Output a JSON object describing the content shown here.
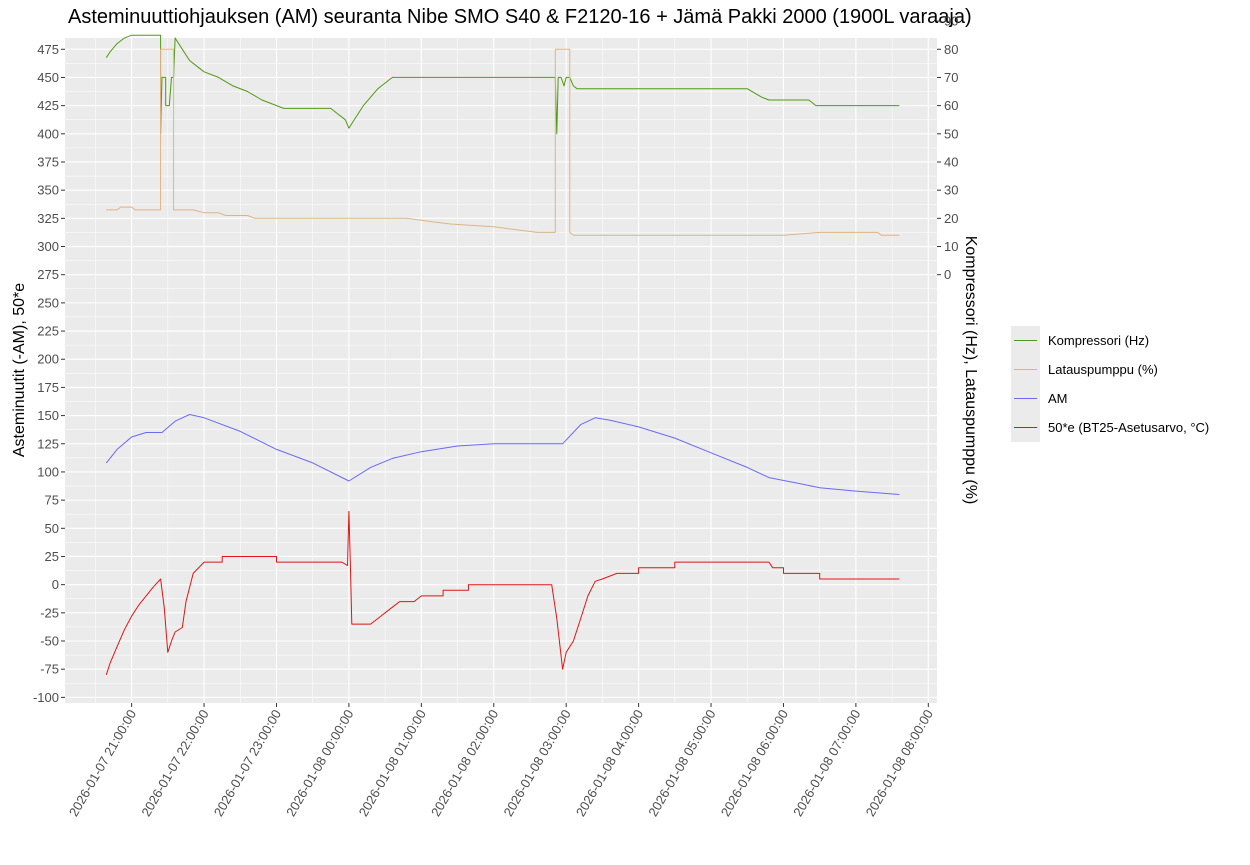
{
  "chart_data": {
    "type": "line",
    "title": "Asteminuuttiohjauksen (AM) seuranta Nibe SMO S40 & F2120-16 + Jämä Pakki 2000 (1900L varaaja)",
    "ylabel_left": "Asteminuutit (-AM), 50*e",
    "ylabel_right": "Kompressori (Hz), Latauspumppu (%)",
    "xlabel": "",
    "ylim_left": [
      -105,
      485
    ],
    "y_ticks_left": [
      -100,
      -75,
      -50,
      -25,
      0,
      25,
      50,
      75,
      100,
      125,
      150,
      175,
      200,
      225,
      250,
      275,
      300,
      325,
      350,
      375,
      400,
      425,
      450,
      475
    ],
    "y_ticks_right": [
      0,
      10,
      20,
      30,
      40,
      50,
      60,
      70,
      80,
      90
    ],
    "x_tick_labels": [
      "2026-01-07 21:00:00",
      "2026-01-07 22:00:00",
      "2026-01-07 23:00:00",
      "2026-01-08 00:00:00",
      "2026-01-08 01:00:00",
      "2026-01-08 02:00:00",
      "2026-01-08 03:00:00",
      "2026-01-08 04:00:00",
      "2026-01-08 05:00:00",
      "2026-01-08 06:00:00",
      "2026-01-08 07:00:00",
      "2026-01-08 08:00:00"
    ],
    "x_hours": [
      0,
      1,
      2,
      3,
      4,
      5,
      6,
      7,
      8,
      9,
      10,
      11
    ],
    "xlim_hours": [
      -0.92,
      11.12
    ],
    "grid": true,
    "legend_position": "right",
    "series": [
      {
        "name": "Kompressori (Hz)",
        "axis": "right",
        "color": "#4f9a12",
        "points": [
          [
            -0.35,
            77
          ],
          [
            -0.3,
            79
          ],
          [
            -0.2,
            82
          ],
          [
            -0.1,
            84
          ],
          [
            0.0,
            85
          ],
          [
            0.4,
            85
          ],
          [
            0.4,
            50
          ],
          [
            0.42,
            70
          ],
          [
            0.47,
            70
          ],
          [
            0.47,
            60
          ],
          [
            0.52,
            60
          ],
          [
            0.55,
            70
          ],
          [
            0.58,
            70
          ],
          [
            0.6,
            84
          ],
          [
            0.7,
            80
          ],
          [
            0.8,
            76
          ],
          [
            0.9,
            74
          ],
          [
            1.0,
            72
          ],
          [
            1.2,
            70
          ],
          [
            1.4,
            67
          ],
          [
            1.6,
            65
          ],
          [
            1.8,
            62
          ],
          [
            2.0,
            60
          ],
          [
            2.1,
            59
          ],
          [
            2.5,
            59
          ],
          [
            2.75,
            59
          ],
          [
            2.85,
            57
          ],
          [
            2.95,
            55
          ],
          [
            3.0,
            52
          ],
          [
            3.05,
            54
          ],
          [
            3.2,
            60
          ],
          [
            3.4,
            66
          ],
          [
            3.6,
            70
          ],
          [
            3.8,
            70
          ],
          [
            4.0,
            70
          ],
          [
            5.0,
            70
          ],
          [
            5.5,
            70
          ],
          [
            5.85,
            70
          ],
          [
            5.87,
            50
          ],
          [
            5.89,
            70
          ],
          [
            5.93,
            70
          ],
          [
            5.97,
            67
          ],
          [
            6.0,
            70
          ],
          [
            6.05,
            70
          ],
          [
            6.1,
            67
          ],
          [
            6.15,
            66
          ],
          [
            6.2,
            66
          ],
          [
            6.5,
            66
          ],
          [
            7.0,
            66
          ],
          [
            8.0,
            66
          ],
          [
            8.5,
            66
          ],
          [
            8.7,
            63
          ],
          [
            8.8,
            62
          ],
          [
            9.0,
            62
          ],
          [
            9.35,
            62
          ],
          [
            9.45,
            60
          ],
          [
            9.6,
            60
          ],
          [
            10.0,
            60
          ],
          [
            10.6,
            60
          ]
        ]
      },
      {
        "name": "Latauspumppu (%)",
        "axis": "right",
        "color": "#e0b482",
        "points": [
          [
            -0.35,
            23
          ],
          [
            -0.2,
            23
          ],
          [
            -0.15,
            24
          ],
          [
            0.0,
            24
          ],
          [
            0.05,
            23
          ],
          [
            0.4,
            23
          ],
          [
            0.4,
            80
          ],
          [
            0.58,
            80
          ],
          [
            0.58,
            23
          ],
          [
            0.85,
            23
          ],
          [
            1.0,
            22
          ],
          [
            1.2,
            22
          ],
          [
            1.3,
            21
          ],
          [
            1.6,
            21
          ],
          [
            1.7,
            20
          ],
          [
            3.0,
            20
          ],
          [
            3.8,
            20
          ],
          [
            4.1,
            19
          ],
          [
            4.4,
            18
          ],
          [
            5.0,
            17
          ],
          [
            5.3,
            16
          ],
          [
            5.6,
            15
          ],
          [
            5.85,
            15
          ],
          [
            5.85,
            80
          ],
          [
            6.05,
            80
          ],
          [
            6.05,
            15
          ],
          [
            6.1,
            14
          ],
          [
            6.5,
            14
          ],
          [
            8.0,
            14
          ],
          [
            9.0,
            14
          ],
          [
            9.5,
            15
          ],
          [
            10.3,
            15
          ],
          [
            10.35,
            14
          ],
          [
            10.6,
            14
          ]
        ]
      },
      {
        "name": "AM",
        "axis": "left",
        "color": "#6a6af5",
        "points": [
          [
            -0.35,
            108
          ],
          [
            -0.2,
            120
          ],
          [
            0.0,
            131
          ],
          [
            0.2,
            135
          ],
          [
            0.42,
            135
          ],
          [
            0.6,
            145
          ],
          [
            0.8,
            151
          ],
          [
            1.0,
            148
          ],
          [
            1.5,
            136
          ],
          [
            2.0,
            120
          ],
          [
            2.5,
            108
          ],
          [
            3.0,
            92
          ],
          [
            3.3,
            104
          ],
          [
            3.6,
            112
          ],
          [
            4.0,
            118
          ],
          [
            4.5,
            123
          ],
          [
            5.0,
            125
          ],
          [
            5.5,
            125
          ],
          [
            5.95,
            125
          ],
          [
            6.2,
            142
          ],
          [
            6.4,
            148
          ],
          [
            6.6,
            146
          ],
          [
            7.0,
            140
          ],
          [
            7.5,
            130
          ],
          [
            8.0,
            117
          ],
          [
            8.5,
            104
          ],
          [
            8.8,
            95
          ],
          [
            9.2,
            90
          ],
          [
            9.5,
            86
          ],
          [
            10.0,
            83
          ],
          [
            10.6,
            80
          ]
        ]
      },
      {
        "name": "50*e (BT25-Asetusarvo, °C)",
        "axis": "left",
        "color": "#e41414",
        "points": [
          [
            -0.35,
            -80
          ],
          [
            -0.3,
            -70
          ],
          [
            -0.2,
            -55
          ],
          [
            -0.1,
            -40
          ],
          [
            0.0,
            -28
          ],
          [
            0.1,
            -18
          ],
          [
            0.2,
            -10
          ],
          [
            0.3,
            -2
          ],
          [
            0.4,
            5
          ],
          [
            0.45,
            -20
          ],
          [
            0.5,
            -60
          ],
          [
            0.55,
            -50
          ],
          [
            0.6,
            -42
          ],
          [
            0.7,
            -38
          ],
          [
            0.75,
            -15
          ],
          [
            0.85,
            10
          ],
          [
            1.0,
            20
          ],
          [
            1.25,
            20
          ],
          [
            1.25,
            25
          ],
          [
            2.0,
            25
          ],
          [
            2.0,
            20
          ],
          [
            2.9,
            20
          ],
          [
            2.98,
            17
          ],
          [
            3.0,
            65
          ],
          [
            3.02,
            17
          ],
          [
            3.04,
            -35
          ],
          [
            3.3,
            -35
          ],
          [
            3.4,
            -30
          ],
          [
            3.5,
            -25
          ],
          [
            3.6,
            -20
          ],
          [
            3.7,
            -15
          ],
          [
            3.9,
            -15
          ],
          [
            4.0,
            -10
          ],
          [
            4.3,
            -10
          ],
          [
            4.3,
            -5
          ],
          [
            4.65,
            -5
          ],
          [
            4.65,
            0
          ],
          [
            5.5,
            0
          ],
          [
            5.8,
            0
          ],
          [
            5.87,
            -30
          ],
          [
            5.95,
            -75
          ],
          [
            6.0,
            -60
          ],
          [
            6.1,
            -50
          ],
          [
            6.2,
            -30
          ],
          [
            6.3,
            -10
          ],
          [
            6.4,
            3
          ],
          [
            6.5,
            5
          ],
          [
            6.7,
            10
          ],
          [
            7.0,
            10
          ],
          [
            7.0,
            15
          ],
          [
            7.5,
            15
          ],
          [
            7.5,
            20
          ],
          [
            8.0,
            20
          ],
          [
            8.8,
            20
          ],
          [
            8.85,
            15
          ],
          [
            9.0,
            15
          ],
          [
            9.0,
            10
          ],
          [
            9.5,
            10
          ],
          [
            9.5,
            5
          ],
          [
            10.0,
            5
          ],
          [
            10.6,
            5
          ]
        ]
      }
    ]
  }
}
